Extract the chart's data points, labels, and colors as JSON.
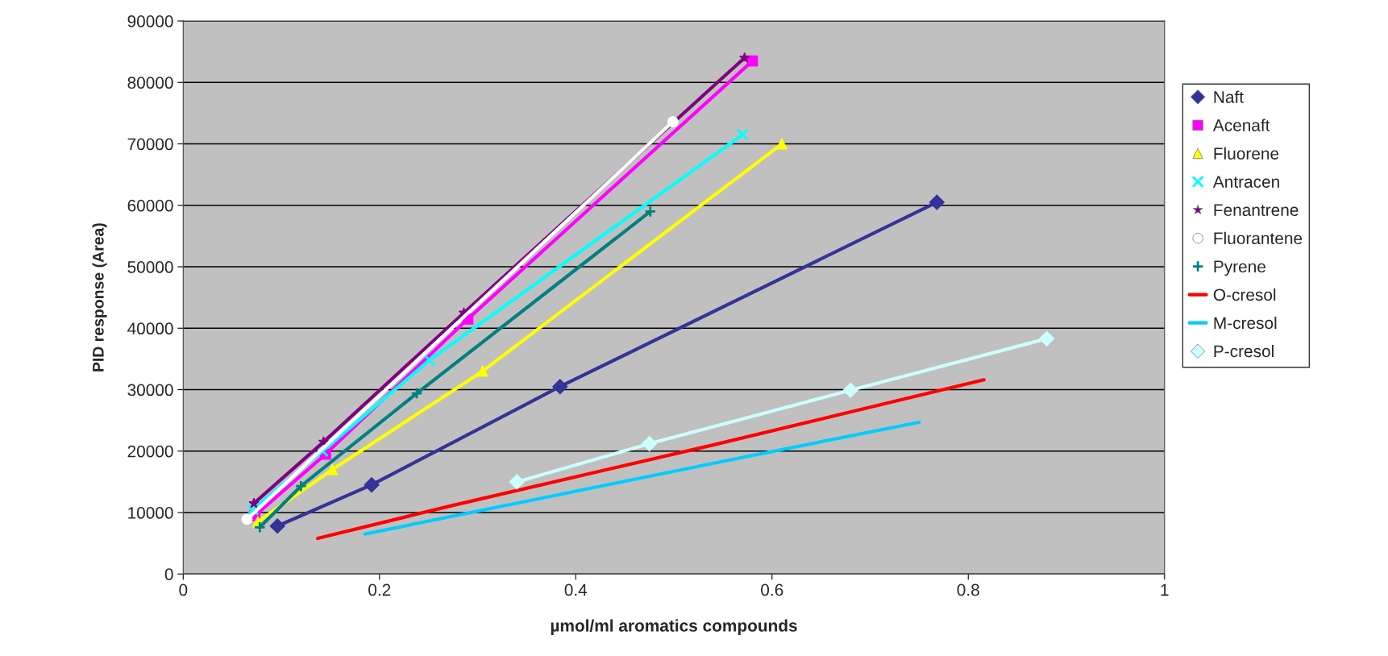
{
  "chart_data": {
    "type": "line",
    "xlabel": "µmol/ml aromatics compounds",
    "ylabel": "PID response (Area)",
    "xlim": [
      0,
      1
    ],
    "xticks": [
      0,
      0.2,
      0.4,
      0.6,
      0.8,
      1
    ],
    "ylim": [
      0,
      90000
    ],
    "yticks": [
      0,
      10000,
      20000,
      30000,
      40000,
      50000,
      60000,
      70000,
      80000,
      90000
    ],
    "grid": "y",
    "legend": "right",
    "series": [
      {
        "name": "Naft",
        "color": "#333399",
        "marker": "diamond",
        "x": [
          0.096,
          0.192,
          0.384,
          0.768
        ],
        "values": [
          7800,
          14500,
          30500,
          60500
        ]
      },
      {
        "name": "Acenaft",
        "color": "#ff00ff",
        "marker": "square",
        "x": [
          0.073,
          0.145,
          0.29,
          0.58
        ],
        "values": [
          9500,
          19500,
          41500,
          83500
        ]
      },
      {
        "name": "Fluorene",
        "color": "#ffff00",
        "marker": "triangle",
        "x": [
          0.076,
          0.152,
          0.305,
          0.61
        ],
        "values": [
          8500,
          17000,
          33000,
          70000
        ]
      },
      {
        "name": "Antracen",
        "color": "#00ffff",
        "marker": "cross",
        "x": [
          0.071,
          0.142,
          0.251,
          0.57
        ],
        "values": [
          10500,
          20000,
          34800,
          71500
        ]
      },
      {
        "name": "Fenantrene",
        "color": "#800080",
        "marker": "star",
        "x": [
          0.072,
          0.143,
          0.286,
          0.572
        ],
        "values": [
          11500,
          21500,
          42500,
          84000
        ]
      },
      {
        "name": "Fluorantene",
        "color": "#ffffff",
        "marker": "circle",
        "x": [
          0.065,
          0.499
        ],
        "values": [
          8900,
          73600
        ]
      },
      {
        "name": "Pyrene",
        "color": "#008080",
        "marker": "plus",
        "x": [
          0.078,
          0.12,
          0.238,
          0.476
        ],
        "values": [
          7600,
          14300,
          29400,
          59000
        ]
      },
      {
        "name": "O-cresol",
        "color": "#ff0000",
        "marker": "none",
        "x": [
          0.137,
          0.273,
          0.54,
          0.816
        ],
        "values": [
          5800,
          11100,
          21000,
          31600
        ]
      },
      {
        "name": "M-cresol",
        "color": "#00ccff",
        "marker": "none",
        "x": [
          0.185,
          0.37,
          0.555,
          0.75
        ],
        "values": [
          6500,
          12500,
          18500,
          24700
        ]
      },
      {
        "name": "P-cresol",
        "color": "#ccffff",
        "marker": "diamond",
        "x": [
          0.34,
          0.475,
          0.68,
          0.88
        ],
        "values": [
          15000,
          21200,
          29900,
          38300
        ]
      }
    ]
  }
}
